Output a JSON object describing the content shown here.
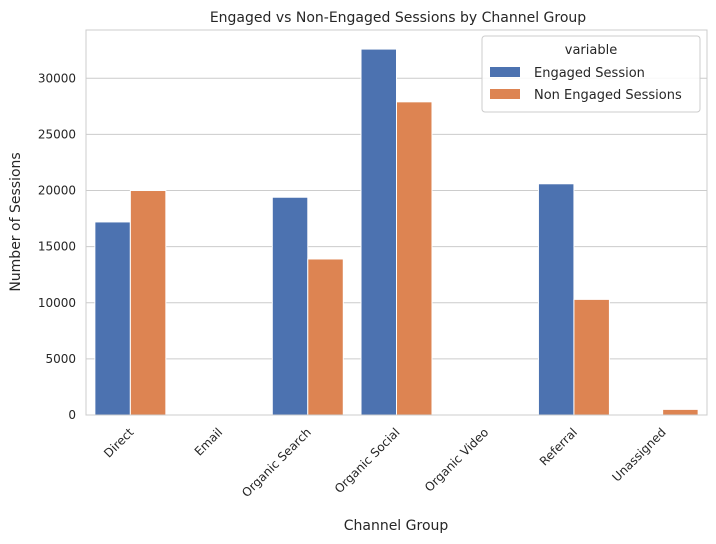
{
  "chart_data": {
    "type": "bar",
    "title": "Engaged vs Non-Engaged Sessions by Channel Group",
    "xlabel": "Channel Group",
    "ylabel": "Number of Sessions",
    "categories": [
      "Direct",
      "Email",
      "Organic Search",
      "Organic Social",
      "Organic Video",
      "Referral",
      "Unassigned"
    ],
    "series": [
      {
        "name": "Engaged Session",
        "values": [
          17200,
          0,
          19400,
          32600,
          0,
          20600,
          0
        ],
        "color": "#4c72b0"
      },
      {
        "name": "Non Engaged Sessions",
        "values": [
          20000,
          0,
          13900,
          27900,
          0,
          10300,
          500
        ],
        "color": "#dd8452"
      }
    ],
    "ylim": [
      0,
      34300
    ],
    "yticks": [
      0,
      5000,
      10000,
      15000,
      20000,
      25000,
      30000
    ],
    "grid": true,
    "legend": {
      "title": "variable",
      "placement": "top-right"
    }
  }
}
